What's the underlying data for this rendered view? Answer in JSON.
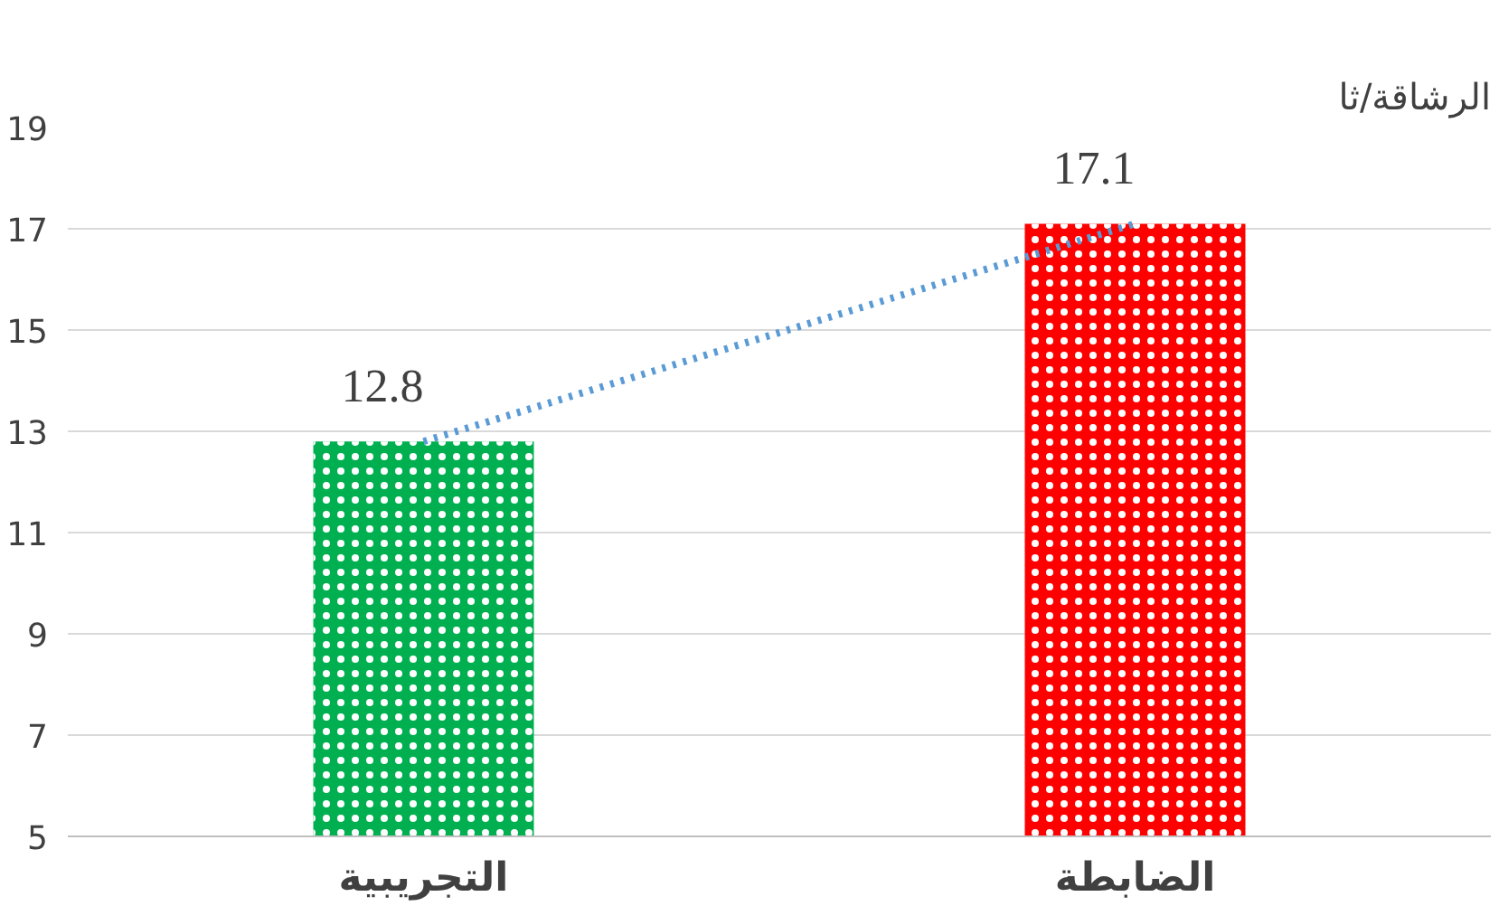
{
  "chart_data": {
    "type": "bar",
    "title": "الرشاقة/ثا",
    "categories": [
      "التجريبية",
      "الضابطة"
    ],
    "series": [
      {
        "colors": [
          "#00b050",
          "#ff0000"
        ],
        "values": [
          12.8,
          17.1
        ],
        "value_labels": [
          "12.8",
          "17.1"
        ]
      },
      {
        "type": "line",
        "color": "#5b9bd5",
        "line_style": "dotted",
        "values": [
          12.8,
          17.1
        ]
      }
    ],
    "ylim": [
      5,
      19
    ],
    "yticks": [
      5,
      7,
      9,
      11,
      13,
      15,
      17,
      19
    ],
    "grid": "y"
  }
}
